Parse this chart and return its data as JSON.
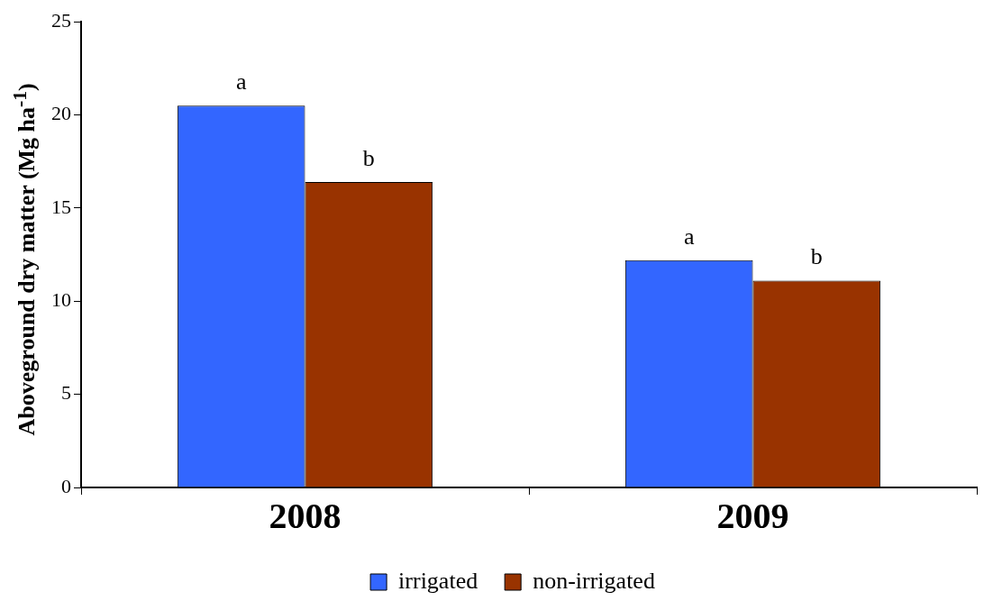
{
  "chart_data": {
    "type": "bar",
    "ylabel": "Aboveground dry matter (Mg ha$^{-1}$)",
    "categories": [
      "2008",
      "2009"
    ],
    "series": [
      {
        "name": "irrigated",
        "color": "#3366ff",
        "values": [
          20.5,
          12.2
        ]
      },
      {
        "name": "non-irrigated",
        "color": "#993300",
        "values": [
          16.4,
          11.1
        ]
      }
    ],
    "ylim": [
      0,
      25
    ],
    "yticks": [
      0,
      5,
      10,
      15,
      20,
      25
    ],
    "grid": false,
    "legend": "bottom",
    "annotations": [
      {
        "text": "a",
        "x": "2008",
        "y": 20.5
      },
      {
        "text": "b",
        "x": "2008",
        "y": 16.4
      },
      {
        "text": "a",
        "x": "2009",
        "y": 12.2
      },
      {
        "text": "b",
        "x": "2009",
        "y": 11.1
      }
    ]
  }
}
